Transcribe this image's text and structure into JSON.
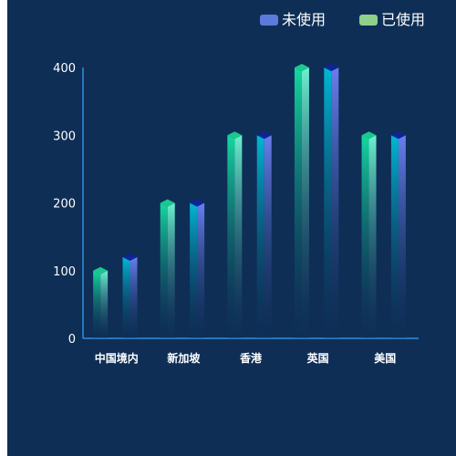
{
  "chart_data": {
    "type": "bar",
    "categories": [
      "中国境内",
      "新加坡",
      "香港",
      "英国",
      "美国"
    ],
    "x_tick_labels": [
      "中国境内",
      "新加坡",
      "香港",
      "英国",
      "美国"
    ],
    "y_ticks": [
      "0",
      "100",
      "200",
      "300",
      "400"
    ],
    "ylim": [
      0,
      400
    ],
    "series": [
      {
        "name": "未使用",
        "values": [
          120,
          200,
          300,
          400,
          300
        ],
        "color": "#5b7bdb"
      },
      {
        "name": "已使用",
        "values": [
          100,
          200,
          300,
          400,
          300
        ],
        "color": "#8fd18a"
      }
    ],
    "title": "",
    "xlabel": "",
    "ylabel": "",
    "legend_position": "top-right",
    "grid": false,
    "style": "3d-gradient-bars"
  }
}
